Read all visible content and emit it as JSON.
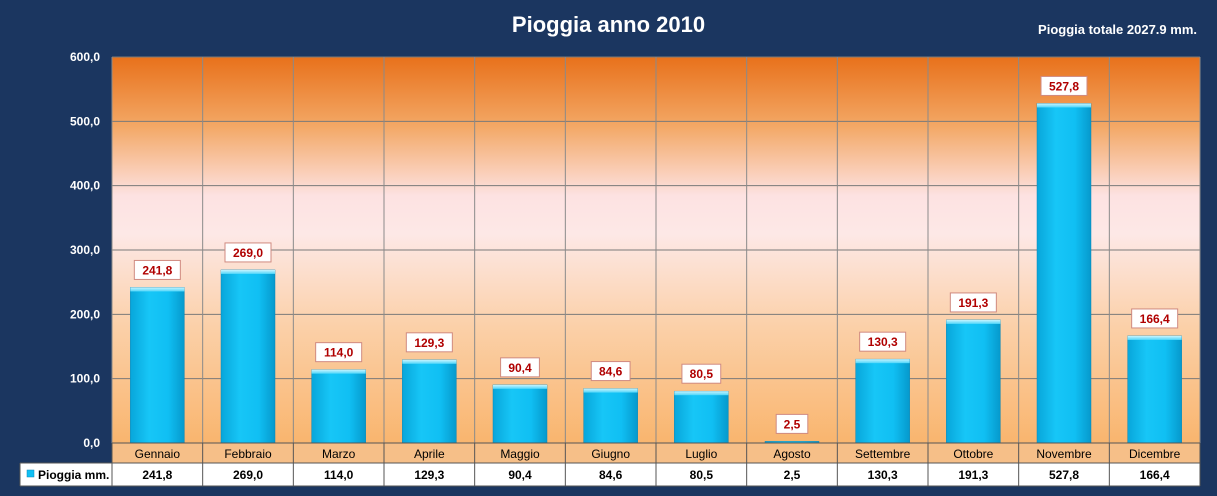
{
  "header": {
    "title": "Pioggia anno 2010",
    "total": "Pioggia totale 2027.9 mm."
  },
  "colors": {
    "background": "#1b3660",
    "bar": "#10c0f4",
    "bar_top": "#7fe4fb",
    "label": "#b00000"
  },
  "chart_data": {
    "type": "bar",
    "title": "Pioggia anno 2010",
    "xlabel": "",
    "ylabel": "",
    "ylim": [
      0,
      600
    ],
    "yticks": [
      0,
      100,
      200,
      300,
      400,
      500,
      600
    ],
    "ytick_labels": [
      "0,0",
      "100,0",
      "200,0",
      "300,0",
      "400,0",
      "500,0",
      "600,0"
    ],
    "categories": [
      "Gennaio",
      "Febbraio",
      "Marzo",
      "Aprile",
      "Maggio",
      "Giugno",
      "Luglio",
      "Agosto",
      "Settembre",
      "Ottobre",
      "Novembre",
      "Dicembre"
    ],
    "series": [
      {
        "name": "Pioggia mm.",
        "values": [
          241.8,
          269.0,
          114.0,
          129.3,
          90.4,
          84.6,
          80.5,
          2.5,
          130.3,
          191.3,
          527.8,
          166.4
        ],
        "labels": [
          "241,8",
          "269,0",
          "114,0",
          "129,3",
          "90,4",
          "84,6",
          "80,5",
          "2,5",
          "130,3",
          "191,3",
          "527,8",
          "166,4"
        ]
      }
    ],
    "grid": true,
    "legend": "data-table"
  }
}
